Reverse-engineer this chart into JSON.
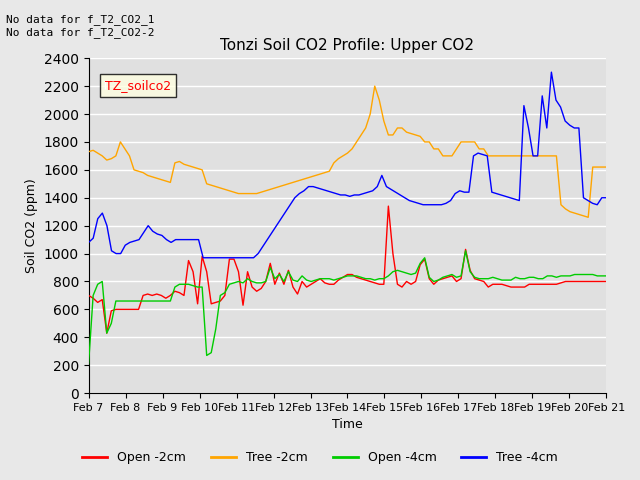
{
  "title": "Tonzi Soil CO2 Profile: Upper CO2",
  "ylabel": "Soil CO2 (ppm)",
  "xlabel": "Time",
  "annotation_lines": [
    "No data for f_T2_CO2_1",
    "No data for f_T2_CO2-2"
  ],
  "legend_box_label": "TZ_soilco2",
  "x_tick_labels": [
    "Feb 7",
    "Feb 8",
    "Feb 9",
    "Feb 10",
    "Feb 11",
    "Feb 12",
    "Feb 13",
    "Feb 14",
    "Feb 15",
    "Feb 16",
    "Feb 17",
    "Feb 18",
    "Feb 19",
    "Feb 20",
    "Feb 21"
  ],
  "ylim": [
    0,
    2400
  ],
  "yticks": [
    0,
    200,
    400,
    600,
    800,
    1000,
    1200,
    1400,
    1600,
    1800,
    2000,
    2200,
    2400
  ],
  "colors": {
    "open_2cm": "#ff0000",
    "tree_2cm": "#ffa500",
    "open_4cm": "#00cc00",
    "tree_4cm": "#0000ff"
  },
  "legend_entries": [
    "Open -2cm",
    "Tree -2cm",
    "Open -4cm",
    "Tree -4cm"
  ],
  "background_color": "#e8e8e8",
  "plot_bg_color": "#e0e0e0",
  "grid_color": "#ffffff",
  "open_2cm": [
    700,
    680,
    650,
    670,
    430,
    590,
    600,
    600,
    600,
    600,
    600,
    600,
    700,
    710,
    700,
    710,
    700,
    680,
    700,
    730,
    720,
    700,
    950,
    870,
    640,
    980,
    870,
    640,
    650,
    660,
    700,
    960,
    960,
    870,
    630,
    870,
    760,
    730,
    750,
    800,
    930,
    780,
    860,
    780,
    880,
    760,
    710,
    800,
    760,
    780,
    800,
    820,
    790,
    780,
    780,
    810,
    830,
    850,
    850,
    830,
    820,
    810,
    800,
    790,
    780,
    780,
    1340,
    1000,
    780,
    760,
    800,
    780,
    800,
    920,
    960,
    820,
    780,
    810,
    820,
    830,
    840,
    800,
    820,
    1030,
    880,
    820,
    810,
    800,
    760,
    780,
    780,
    780,
    770,
    760,
    760,
    760,
    760,
    780,
    780,
    780,
    780,
    780,
    780,
    780,
    790,
    800,
    800,
    800,
    800,
    800,
    800,
    800,
    800,
    800,
    800
  ],
  "tree_2cm": [
    1730,
    1740,
    1720,
    1700,
    1670,
    1680,
    1700,
    1800,
    1750,
    1700,
    1600,
    1590,
    1580,
    1560,
    1550,
    1540,
    1530,
    1520,
    1510,
    1650,
    1660,
    1640,
    1630,
    1620,
    1610,
    1600,
    1500,
    1490,
    1480,
    1470,
    1460,
    1450,
    1440,
    1430,
    1430,
    1430,
    1430,
    1430,
    1440,
    1450,
    1460,
    1470,
    1480,
    1490,
    1500,
    1510,
    1520,
    1530,
    1540,
    1550,
    1560,
    1570,
    1580,
    1590,
    1650,
    1680,
    1700,
    1720,
    1750,
    1800,
    1850,
    1900,
    2000,
    2200,
    2100,
    1950,
    1850,
    1850,
    1900,
    1900,
    1870,
    1860,
    1850,
    1840,
    1800,
    1800,
    1750,
    1750,
    1700,
    1700,
    1700,
    1750,
    1800,
    1800,
    1800,
    1800,
    1750,
    1750,
    1700,
    1700,
    1700,
    1700,
    1700,
    1700,
    1700,
    1700,
    1700,
    1700,
    1700,
    1700,
    1700,
    1700,
    1700,
    1700,
    1350,
    1320,
    1300,
    1290,
    1280,
    1270,
    1260,
    1620,
    1620,
    1620,
    1620
  ],
  "open_4cm": [
    210,
    700,
    780,
    800,
    430,
    500,
    660,
    660,
    660,
    660,
    660,
    660,
    660,
    660,
    660,
    660,
    660,
    660,
    660,
    760,
    780,
    780,
    780,
    770,
    760,
    760,
    270,
    290,
    460,
    700,
    720,
    780,
    790,
    800,
    790,
    820,
    800,
    790,
    790,
    800,
    900,
    820,
    850,
    800,
    870,
    810,
    800,
    840,
    810,
    800,
    810,
    820,
    820,
    820,
    810,
    820,
    830,
    840,
    840,
    840,
    830,
    820,
    820,
    810,
    820,
    820,
    840,
    870,
    880,
    870,
    860,
    850,
    860,
    930,
    970,
    830,
    800,
    810,
    830,
    840,
    850,
    830,
    840,
    1020,
    870,
    830,
    820,
    820,
    820,
    830,
    820,
    810,
    810,
    810,
    830,
    820,
    820,
    830,
    830,
    820,
    820,
    840,
    840,
    830,
    840,
    840,
    840,
    850,
    850,
    850,
    850,
    850,
    840,
    840,
    840
  ],
  "tree_4cm": [
    1080,
    1110,
    1250,
    1290,
    1200,
    1020,
    1000,
    1000,
    1060,
    1080,
    1090,
    1100,
    1150,
    1200,
    1160,
    1140,
    1130,
    1100,
    1080,
    1100,
    1100,
    1100,
    1100,
    1100,
    1100,
    970,
    970,
    970,
    970,
    970,
    970,
    970,
    970,
    970,
    970,
    970,
    970,
    1000,
    1050,
    1100,
    1150,
    1200,
    1250,
    1300,
    1350,
    1400,
    1430,
    1450,
    1480,
    1480,
    1470,
    1460,
    1450,
    1440,
    1430,
    1420,
    1420,
    1410,
    1420,
    1420,
    1430,
    1440,
    1450,
    1480,
    1560,
    1480,
    1460,
    1440,
    1420,
    1400,
    1380,
    1370,
    1360,
    1350,
    1350,
    1350,
    1350,
    1350,
    1360,
    1380,
    1430,
    1450,
    1440,
    1440,
    1700,
    1720,
    1710,
    1700,
    1440,
    1430,
    1420,
    1410,
    1400,
    1390,
    1380,
    2060,
    1900,
    1700,
    1700,
    2130,
    1900,
    2300,
    2100,
    2050,
    1950,
    1920,
    1900,
    1900,
    1400,
    1380,
    1360,
    1350,
    1400,
    1400
  ]
}
